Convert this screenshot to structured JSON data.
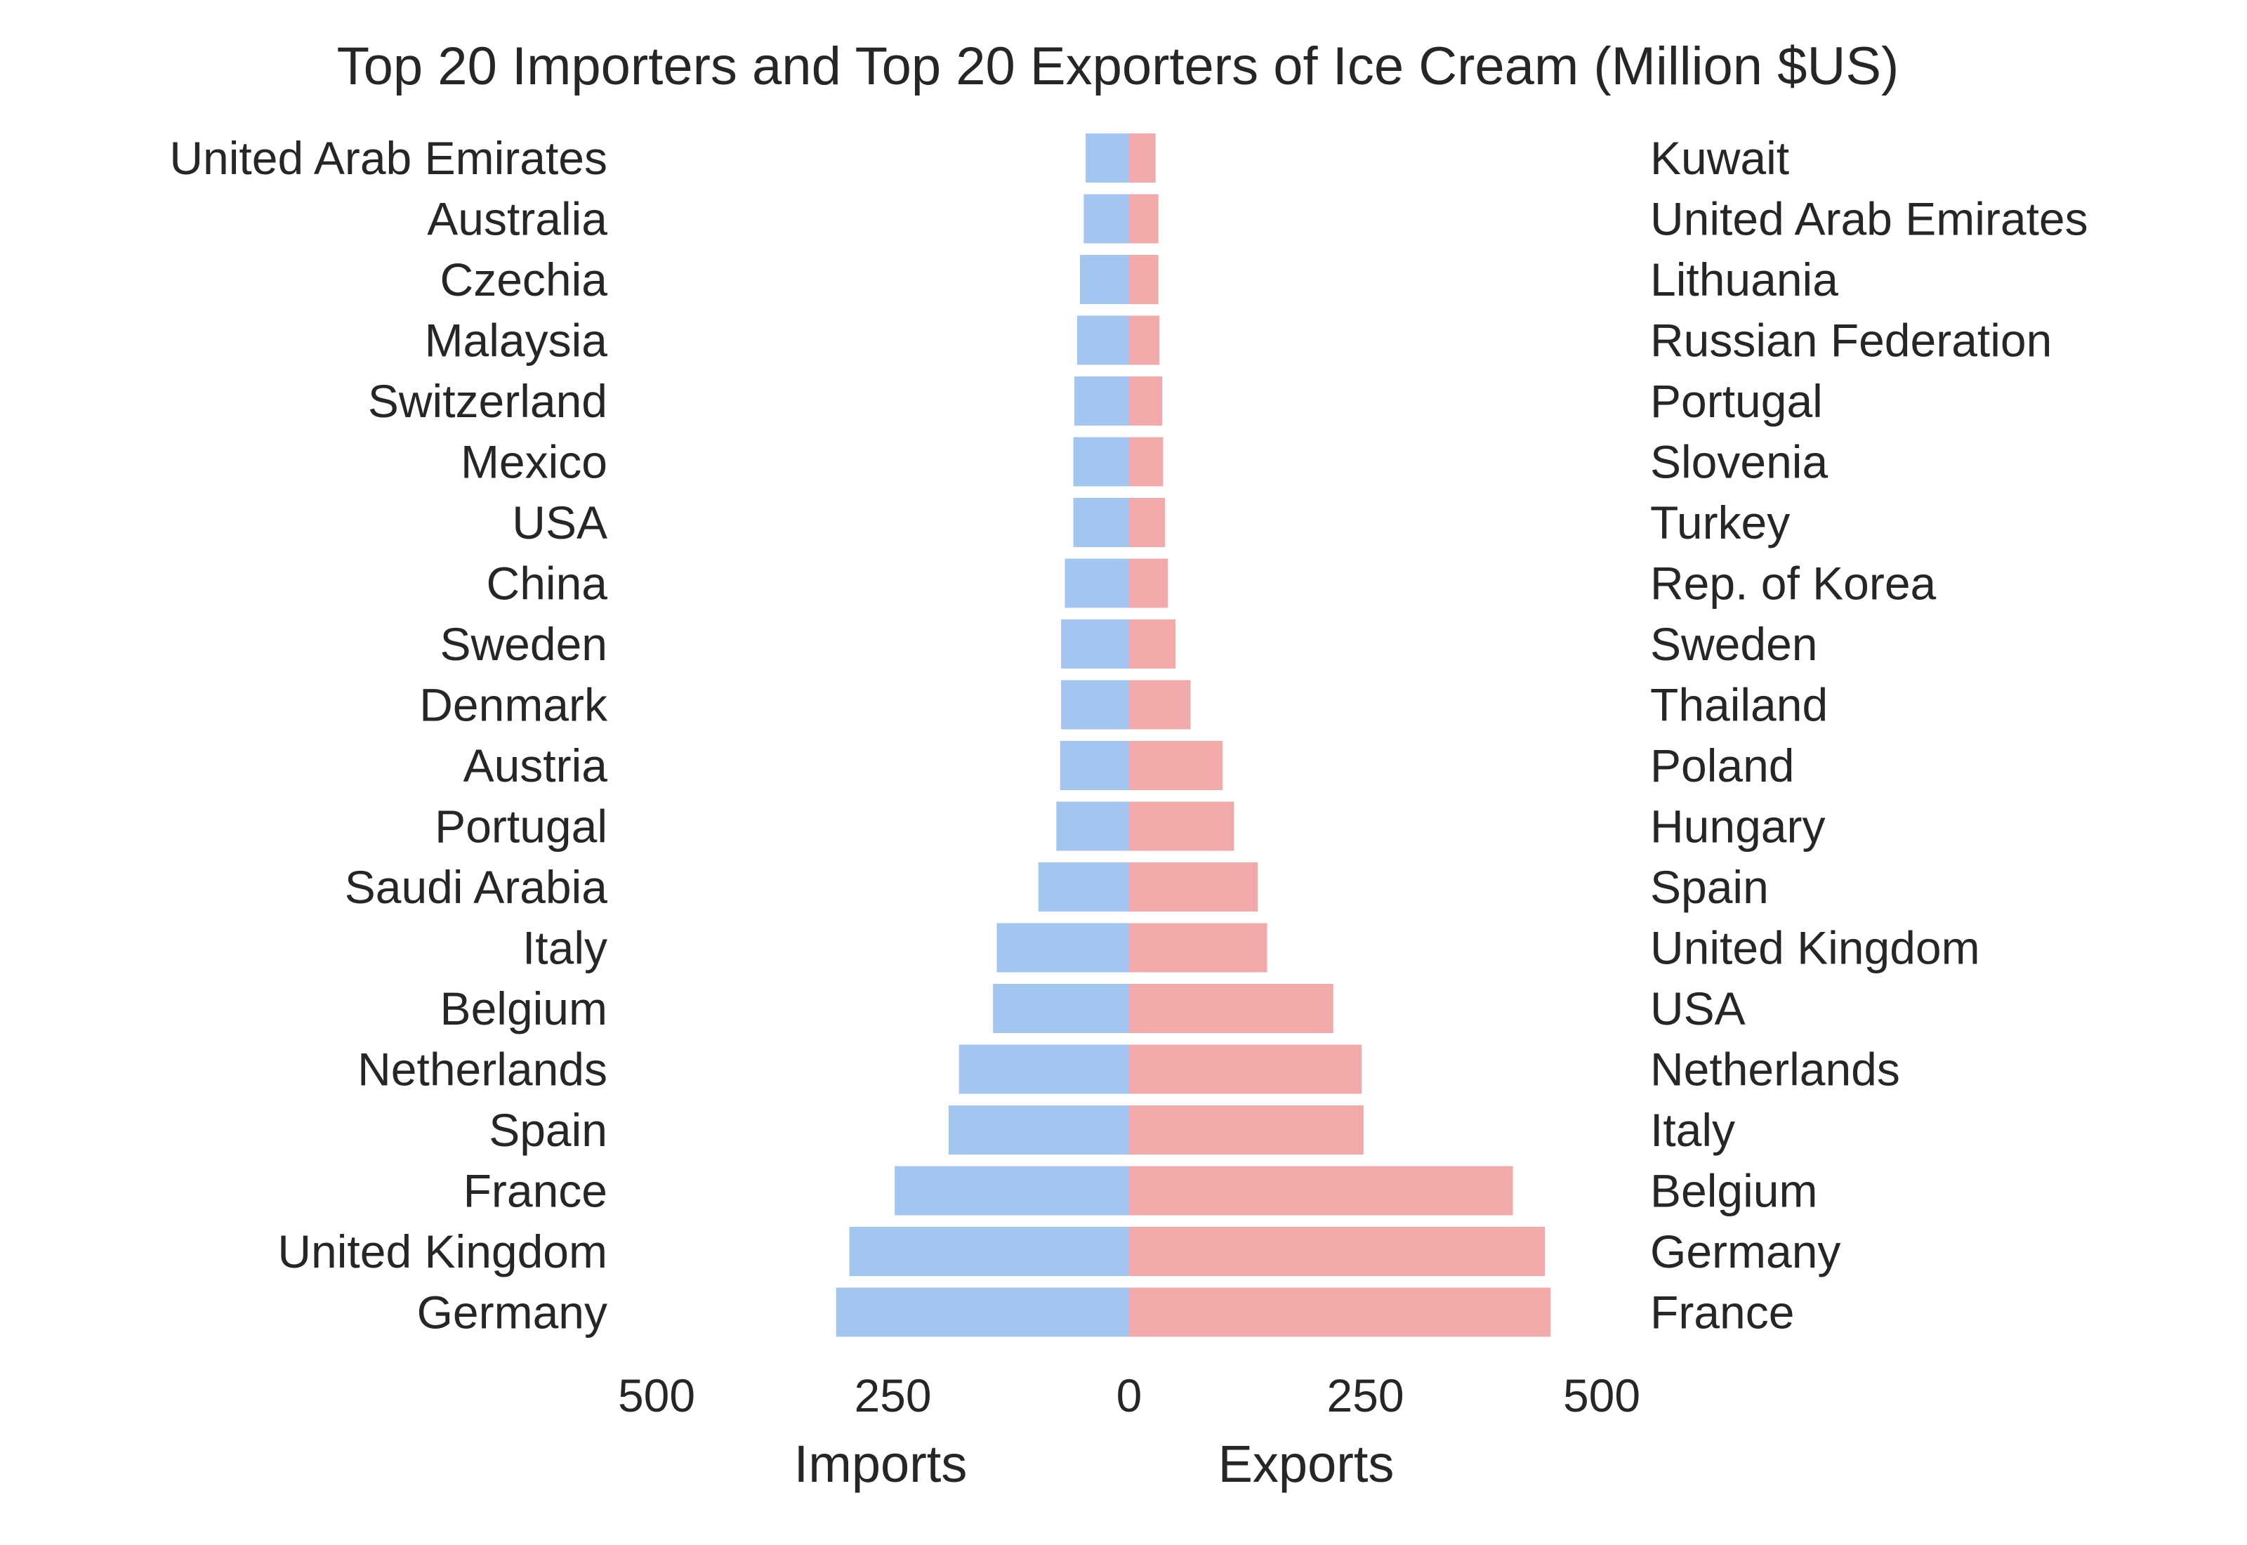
{
  "chart_data": {
    "type": "bar",
    "orientation": "horizontal-butterfly",
    "title": "Top 20 Importers and Top 20 Exporters of Ice Cream (Million $US)",
    "imports": {
      "xlabel": "Imports",
      "color": "#a2c6f0",
      "xlim": [
        500,
        0
      ],
      "ticks": [
        500,
        250,
        0
      ],
      "categories": [
        "United Arab Emirates",
        "Australia",
        "Czechia",
        "Malaysia",
        "Switzerland",
        "Mexico",
        "USA",
        "China",
        "Sweden",
        "Denmark",
        "Austria",
        "Portugal",
        "Saudi Arabia",
        "Italy",
        "Belgium",
        "Netherlands",
        "Spain",
        "France",
        "United Kingdom",
        "Germany"
      ],
      "values": [
        46,
        48,
        52,
        55,
        58,
        59,
        59,
        68,
        72,
        72,
        73,
        77,
        96,
        140,
        144,
        180,
        191,
        248,
        296,
        310
      ]
    },
    "exports": {
      "xlabel": "Exports",
      "color": "#f2a9a9",
      "xlim": [
        0,
        500
      ],
      "ticks": [
        0,
        250,
        500
      ],
      "categories": [
        "Kuwait",
        "United Arab Emirates",
        "Lithuania",
        "Russian Federation",
        "Portugal",
        "Slovenia",
        "Turkey",
        "Rep. of Korea",
        "Sweden",
        "Thailand",
        "Poland",
        "Hungary",
        "Spain",
        "United Kingdom",
        "USA",
        "Netherlands",
        "Italy",
        "Belgium",
        "Germany",
        "France"
      ],
      "values": [
        28,
        31,
        31,
        32,
        35,
        36,
        38,
        41,
        49,
        65,
        99,
        111,
        136,
        146,
        216,
        246,
        248,
        406,
        440,
        446
      ]
    }
  }
}
